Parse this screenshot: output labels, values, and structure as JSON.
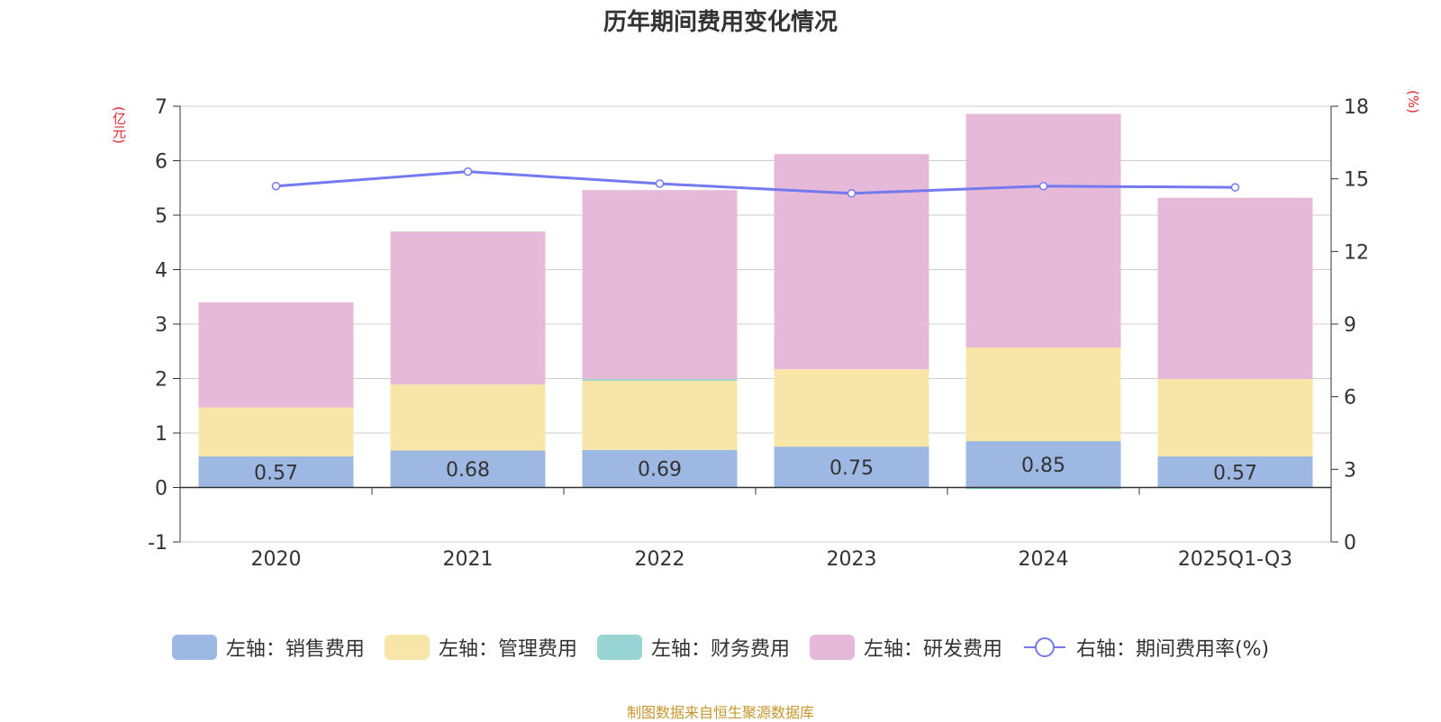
{
  "title": "历年期间费用变化情况",
  "left_unit": "(亿元)",
  "right_unit": "(%)",
  "source": "制图数据来自恒生聚源数据库",
  "colors": {
    "sales": "#9db8e3",
    "admin": "#f8e6a8",
    "finance": "#98d4d4",
    "rd": "#e7b9d9",
    "rate_line": "#7479ef",
    "axis_text": "#333333",
    "grid": "#cccccc",
    "unit_red": "#e8252d"
  },
  "legend": [
    {
      "label": "左轴：销售费用",
      "key": "sales"
    },
    {
      "label": "左轴：管理费用",
      "key": "admin"
    },
    {
      "label": "左轴：财务费用",
      "key": "finance"
    },
    {
      "label": "左轴：研发费用",
      "key": "rd"
    },
    {
      "label": "右轴：期间费用率(%)",
      "key": "rate_line"
    }
  ],
  "chart_data": {
    "type": "bar",
    "stacked": true,
    "title": "历年期间费用变化情况",
    "categories": [
      "2020",
      "2021",
      "2022",
      "2023",
      "2024",
      "2025Q1-Q3"
    ],
    "series": [
      {
        "name": "左轴：销售费用",
        "key": "sales",
        "axis": "left",
        "values": [
          0.57,
          0.68,
          0.69,
          0.75,
          0.85,
          0.57
        ]
      },
      {
        "name": "左轴：管理费用",
        "key": "admin",
        "axis": "left",
        "values": [
          0.9,
          1.21,
          1.27,
          1.42,
          1.72,
          1.42
        ]
      },
      {
        "name": "左轴：财务费用",
        "key": "finance",
        "axis": "left",
        "values": [
          0.0,
          0.0,
          0.03,
          0.0,
          -0.03,
          0.0
        ]
      },
      {
        "name": "左轴：研发费用",
        "key": "rd",
        "axis": "left",
        "values": [
          1.93,
          2.81,
          3.47,
          3.95,
          4.29,
          3.33
        ]
      },
      {
        "name": "右轴：期间费用率(%)",
        "key": "rate_line",
        "axis": "right",
        "type": "line",
        "values": [
          14.7,
          15.3,
          14.8,
          14.4,
          14.7,
          14.65
        ]
      }
    ],
    "data_labels": [
      "0.57",
      "0.68",
      "0.69",
      "0.75",
      "0.85",
      "0.57"
    ],
    "y_left": {
      "label": "(亿元)",
      "range": [
        -1,
        7
      ],
      "ticks": [
        "-1",
        "0",
        "1",
        "2",
        "3",
        "4",
        "5",
        "6",
        "7"
      ]
    },
    "y_right": {
      "label": "(%)",
      "range": [
        0,
        18
      ],
      "ticks": [
        "0",
        "3",
        "6",
        "9",
        "12",
        "15",
        "18"
      ]
    },
    "grid": true,
    "legend_position": "bottom"
  }
}
